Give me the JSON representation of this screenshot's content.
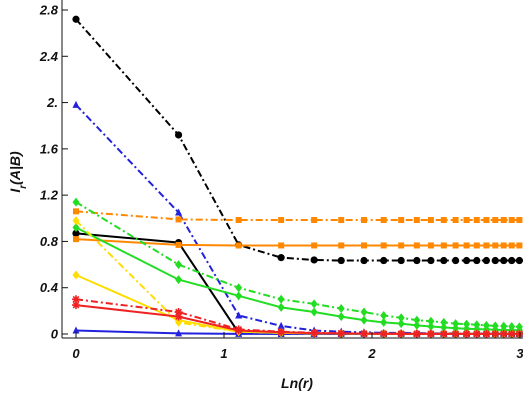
{
  "chart_data": {
    "type": "line",
    "xlabel": "Ln(r)",
    "ylabel": "I_r(A|B)",
    "xlim": [
      0,
      3
    ],
    "ylim": [
      0,
      2.8
    ],
    "xticks": [
      "0",
      "1",
      "2",
      "3"
    ],
    "yticks": [
      "0",
      "0.4",
      "0.8",
      "1.2",
      "1.6",
      "2.",
      "2.4",
      "2.8"
    ],
    "grid": false,
    "series": [
      {
        "color": "#000000",
        "dash": "dashdot",
        "marker": "circle",
        "x": [
          0,
          0.693,
          1.099,
          1.386,
          1.609,
          1.792,
          1.946,
          2.079,
          2.197,
          2.303,
          2.398,
          2.485,
          2.565,
          2.639,
          2.708,
          2.773,
          2.833,
          2.89,
          2.944,
          2.996
        ],
        "y": [
          2.72,
          1.72,
          0.77,
          0.66,
          0.64,
          0.635,
          0.635,
          0.635,
          0.635,
          0.635,
          0.635,
          0.635,
          0.635,
          0.635,
          0.635,
          0.635,
          0.635,
          0.635,
          0.635,
          0.635
        ]
      },
      {
        "color": "#000000",
        "dash": "solid",
        "marker": "circle",
        "x": [
          0,
          0.693,
          1.099,
          1.386,
          1.609,
          1.792,
          1.946,
          2.079,
          2.197,
          2.303,
          2.398,
          2.485,
          2.565,
          2.639,
          2.708,
          2.773,
          2.833,
          2.89,
          2.944,
          2.996
        ],
        "y": [
          0.87,
          0.79,
          0.01,
          0.005,
          0.003,
          0.002,
          0.001,
          0.001,
          0.001,
          0.001,
          0.001,
          0.001,
          0.001,
          0.001,
          0.001,
          0.001,
          0.001,
          0.001,
          0.001,
          0.001
        ]
      },
      {
        "color": "#2222dd",
        "dash": "dashdot",
        "marker": "triangle",
        "x": [
          0,
          0.693,
          1.099,
          1.386,
          1.609,
          1.792,
          1.946,
          2.079,
          2.197,
          2.303,
          2.398,
          2.485,
          2.565,
          2.639,
          2.708,
          2.773,
          2.833,
          2.89,
          2.944,
          2.996
        ],
        "y": [
          1.98,
          1.05,
          0.16,
          0.07,
          0.03,
          0.02,
          0.015,
          0.01,
          0.01,
          0.008,
          0.006,
          0.005,
          0.005,
          0.004,
          0.004,
          0.003,
          0.003,
          0.003,
          0.002,
          0.002
        ]
      },
      {
        "color": "#2222dd",
        "dash": "solid",
        "marker": "triangle",
        "x": [
          0,
          0.693,
          1.099,
          1.386,
          1.609,
          1.792,
          1.946,
          2.079,
          2.197,
          2.303,
          2.398,
          2.485,
          2.565,
          2.639,
          2.708,
          2.773,
          2.833,
          2.89,
          2.944,
          2.996
        ],
        "y": [
          0.03,
          0.005,
          0.001,
          0,
          0,
          0,
          0,
          0,
          0,
          0,
          0,
          0,
          0,
          0,
          0,
          0,
          0,
          0,
          0,
          0
        ]
      },
      {
        "color": "#ff8800",
        "dash": "dashdot",
        "marker": "square",
        "x": [
          0,
          0.693,
          1.099,
          1.386,
          1.609,
          1.792,
          1.946,
          2.079,
          2.197,
          2.303,
          2.398,
          2.485,
          2.565,
          2.639,
          2.708,
          2.773,
          2.833,
          2.89,
          2.944,
          2.996
        ],
        "y": [
          1.06,
          0.99,
          0.985,
          0.985,
          0.985,
          0.985,
          0.985,
          0.985,
          0.985,
          0.985,
          0.985,
          0.985,
          0.985,
          0.985,
          0.985,
          0.985,
          0.985,
          0.985,
          0.985,
          0.985
        ]
      },
      {
        "color": "#ff8800",
        "dash": "solid",
        "marker": "square",
        "x": [
          0,
          0.693,
          1.099,
          1.386,
          1.609,
          1.792,
          1.946,
          2.079,
          2.197,
          2.303,
          2.398,
          2.485,
          2.565,
          2.639,
          2.708,
          2.773,
          2.833,
          2.89,
          2.944,
          2.996
        ],
        "y": [
          0.82,
          0.77,
          0.765,
          0.765,
          0.765,
          0.765,
          0.765,
          0.765,
          0.765,
          0.765,
          0.765,
          0.765,
          0.765,
          0.765,
          0.765,
          0.765,
          0.765,
          0.765,
          0.765,
          0.765
        ]
      },
      {
        "color": "#22dd22",
        "dash": "dashdot",
        "marker": "diamond",
        "x": [
          0,
          0.693,
          1.099,
          1.386,
          1.609,
          1.792,
          1.946,
          2.079,
          2.197,
          2.303,
          2.398,
          2.485,
          2.565,
          2.639,
          2.708,
          2.773,
          2.833,
          2.89,
          2.944,
          2.996
        ],
        "y": [
          1.14,
          0.6,
          0.4,
          0.3,
          0.26,
          0.22,
          0.19,
          0.16,
          0.14,
          0.12,
          0.11,
          0.1,
          0.09,
          0.085,
          0.08,
          0.075,
          0.07,
          0.068,
          0.065,
          0.062
        ]
      },
      {
        "color": "#22dd22",
        "dash": "solid",
        "marker": "diamond",
        "x": [
          0,
          0.693,
          1.099,
          1.386,
          1.609,
          1.792,
          1.946,
          2.079,
          2.197,
          2.303,
          2.398,
          2.485,
          2.565,
          2.639,
          2.708,
          2.773,
          2.833,
          2.89,
          2.944,
          2.996
        ],
        "y": [
          0.92,
          0.47,
          0.33,
          0.23,
          0.19,
          0.15,
          0.12,
          0.1,
          0.09,
          0.075,
          0.065,
          0.057,
          0.05,
          0.045,
          0.042,
          0.04,
          0.037,
          0.035,
          0.033,
          0.032
        ]
      },
      {
        "color": "#ffdd00",
        "dash": "dashdot",
        "marker": "diamond",
        "x": [
          0,
          0.693,
          1.099,
          1.386,
          1.609,
          1.792,
          1.946,
          2.079,
          2.197,
          2.303,
          2.398,
          2.485,
          2.565,
          2.639,
          2.708,
          2.773,
          2.833,
          2.89,
          2.944,
          2.996
        ],
        "y": [
          0.98,
          0.1,
          0.02,
          0.01,
          0.005,
          0.004,
          0.003,
          0.002,
          0.002,
          0.001,
          0.001,
          0.001,
          0.001,
          0.001,
          0.001,
          0.001,
          0.001,
          0.001,
          0.001,
          0.001
        ]
      },
      {
        "color": "#ffdd00",
        "dash": "solid",
        "marker": "diamond",
        "x": [
          0,
          0.693,
          1.099,
          1.386,
          1.609,
          1.792,
          1.946,
          2.079,
          2.197,
          2.303,
          2.398,
          2.485,
          2.565,
          2.639,
          2.708,
          2.773,
          2.833,
          2.89,
          2.944,
          2.996
        ],
        "y": [
          0.51,
          0.12,
          0.02,
          0.01,
          0.005,
          0.003,
          0.002,
          0.001,
          0.001,
          0.001,
          0.001,
          0.001,
          0.001,
          0.001,
          0.001,
          0.001,
          0.001,
          0.001,
          0.001,
          0.001
        ]
      },
      {
        "color": "#ee2222",
        "dash": "dashdot",
        "marker": "star",
        "x": [
          0,
          0.693,
          1.099,
          1.386,
          1.609,
          1.792,
          1.946,
          2.079,
          2.197,
          2.303,
          2.398,
          2.485,
          2.565,
          2.639,
          2.708,
          2.773,
          2.833,
          2.89,
          2.944,
          2.996
        ],
        "y": [
          0.3,
          0.19,
          0.04,
          0.02,
          0.01,
          0.006,
          0.004,
          0.003,
          0.002,
          0.002,
          0.001,
          0.001,
          0.001,
          0.001,
          0.001,
          0.001,
          0.001,
          0.001,
          0.001,
          0.001
        ]
      },
      {
        "color": "#ee2222",
        "dash": "solid",
        "marker": "star",
        "x": [
          0,
          0.693,
          1.099,
          1.386,
          1.609,
          1.792,
          1.946,
          2.079,
          2.197,
          2.303,
          2.398,
          2.485,
          2.565,
          2.639,
          2.708,
          2.773,
          2.833,
          2.89,
          2.944,
          2.996
        ],
        "y": [
          0.25,
          0.15,
          0.03,
          0.015,
          0.008,
          0.005,
          0.003,
          0.002,
          0.001,
          0.001,
          0.001,
          0.001,
          0.001,
          0.001,
          0.001,
          0.001,
          0.001,
          0.001,
          0.001,
          0.001
        ]
      }
    ]
  }
}
